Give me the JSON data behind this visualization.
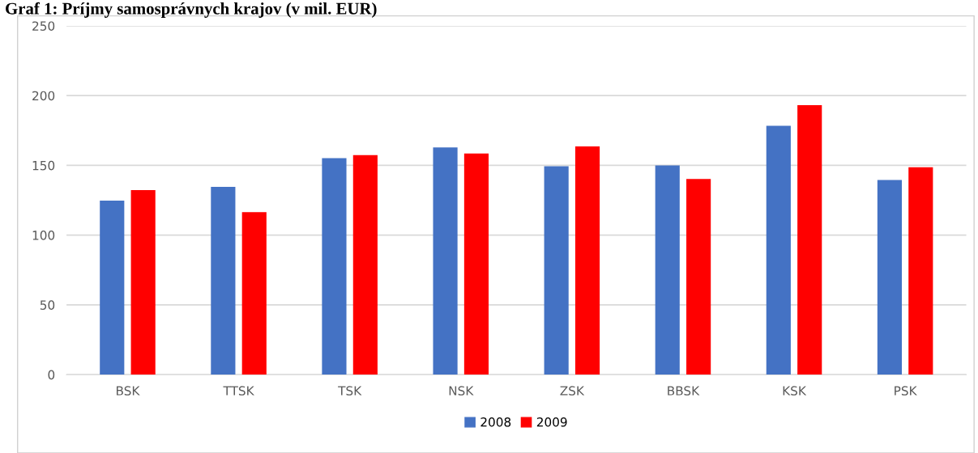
{
  "chart_data": {
    "type": "bar",
    "title": "Graf 1: Príjmy samosprávnych krajov (v mil. EUR)",
    "categories": [
      "BSK",
      "TTSK",
      "TSK",
      "NSK",
      "ZSK",
      "BBSK",
      "KSK",
      "PSK"
    ],
    "series": [
      {
        "name": "2008",
        "color": "#4472c4",
        "values": [
          124.7,
          134.6,
          155.1,
          162.9,
          149.3,
          150.0,
          178.3,
          139.5
        ]
      },
      {
        "name": "2009",
        "color": "#ff0000",
        "values": [
          132.3,
          116.4,
          157.4,
          158.5,
          163.6,
          140.2,
          193.2,
          148.6
        ]
      }
    ],
    "ylim": [
      0,
      250
    ],
    "yticks": [
      0,
      50,
      100,
      150,
      200,
      250
    ],
    "grid": "y",
    "legend": "bottom"
  }
}
